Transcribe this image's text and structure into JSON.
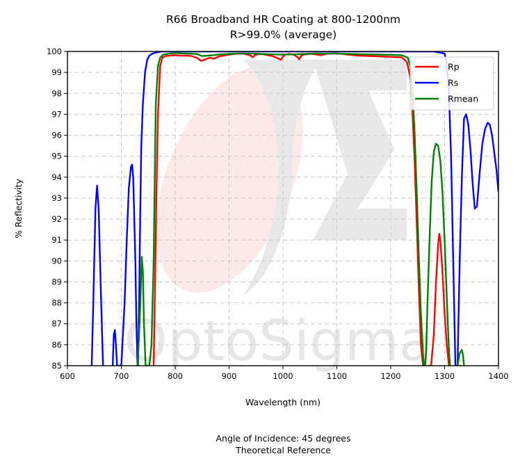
{
  "header": {
    "title": "R66 Broadband HR Coating at 800-1200nm",
    "subtitle": "R>99.0% (average)"
  },
  "footer": {
    "line1": "Angle of Incidence: 45 degrees",
    "line2": "Theoretical Reference"
  },
  "watermark": {
    "text": "OptoSigma",
    "color": "#cccccc"
  },
  "chart_data": {
    "type": "line",
    "title": "R66 Broadband HR Coating at 800-1200nm",
    "subtitle": "R>99.0% (average)",
    "xlabel": "Wavelength (nm)",
    "ylabel": "% Reflectivity",
    "xlim": [
      600,
      1400
    ],
    "ylim": [
      85,
      100
    ],
    "xticks": [
      600,
      700,
      800,
      900,
      1000,
      1100,
      1200,
      1300,
      1400
    ],
    "yticks": [
      85,
      86,
      87,
      88,
      89,
      90,
      91,
      92,
      93,
      94,
      95,
      96,
      97,
      98,
      99,
      100
    ],
    "grid": true,
    "legend_position": "top-right",
    "series": [
      {
        "name": "Rp",
        "color": "#ff0000",
        "x": [
          760,
          762,
          765,
          768,
          772,
          776,
          782,
          790,
          800,
          810,
          820,
          830,
          840,
          848,
          856,
          864,
          872,
          880,
          890,
          900,
          910,
          920,
          930,
          940,
          944,
          948,
          956,
          964,
          972,
          980,
          988,
          996,
          1000,
          1004,
          1010,
          1020,
          1028,
          1030,
          1034,
          1040,
          1050,
          1060,
          1070,
          1080,
          1090,
          1100,
          1110,
          1120,
          1140,
          1160,
          1180,
          1200,
          1220,
          1230,
          1236,
          1240,
          1244,
          1248,
          1252,
          1256,
          1260,
          1262,
          1264,
          1266,
          1270,
          1275,
          1280,
          1284,
          1288,
          1290,
          1292,
          1296,
          1300,
          1304,
          1308,
          1312,
          1316,
          1320,
          1324,
          1328,
          1330
        ],
        "y": [
          85,
          88,
          93,
          97,
          99.3,
          99.7,
          99.78,
          99.8,
          99.82,
          99.8,
          99.8,
          99.78,
          99.7,
          99.55,
          99.62,
          99.7,
          99.65,
          99.75,
          99.8,
          99.85,
          99.88,
          99.9,
          99.88,
          99.8,
          99.72,
          99.82,
          99.88,
          99.86,
          99.82,
          99.78,
          99.7,
          99.6,
          99.75,
          99.85,
          99.88,
          99.85,
          99.7,
          99.62,
          99.8,
          99.86,
          99.88,
          99.86,
          99.82,
          99.88,
          99.9,
          99.9,
          99.88,
          99.85,
          99.8,
          99.78,
          99.76,
          99.74,
          99.72,
          99.5,
          98.8,
          97.3,
          95,
          92,
          88.8,
          86,
          85,
          84.5,
          84.5,
          84.8,
          85,
          85,
          86.5,
          89,
          90.8,
          91.3,
          91,
          89.5,
          87.5,
          86,
          85,
          84.6,
          84.6,
          84.8,
          85,
          85,
          85
        ]
      },
      {
        "name": "Rs",
        "color": "#0000ff",
        "x": [
          640,
          645,
          648,
          652,
          655,
          658,
          662,
          666,
          668,
          680,
          684,
          686,
          688,
          690,
          692,
          700,
          706,
          710,
          714,
          718,
          720,
          722,
          726,
          728,
          730,
          731,
          733,
          735,
          737,
          740,
          744,
          748,
          752,
          758,
          765,
          775,
          790,
          1000,
          1200,
          1280,
          1300,
          1304,
          1308,
          1312,
          1316,
          1320,
          1324,
          1328,
          1332,
          1336,
          1340,
          1344,
          1348,
          1352,
          1356,
          1360,
          1365,
          1370,
          1375,
          1380,
          1384,
          1388,
          1392,
          1396,
          1400
        ],
        "y": [
          84,
          85,
          88,
          92.5,
          93.6,
          92.5,
          88.5,
          85,
          84,
          84,
          85,
          86.5,
          86.7,
          86,
          85,
          85,
          88,
          91,
          93.5,
          94.5,
          94.6,
          94,
          90,
          87,
          85,
          85,
          88,
          92,
          95.5,
          97.5,
          99,
          99.6,
          99.8,
          99.9,
          99.95,
          100,
          100,
          100,
          100,
          100,
          99.9,
          99.4,
          98,
          95,
          90,
          85,
          85,
          90,
          94,
          96.8,
          97,
          96.5,
          95.3,
          93.7,
          92.5,
          92.6,
          94.2,
          95.6,
          96.3,
          96.6,
          96.5,
          96,
          95.2,
          94.4,
          93.3
        ]
      },
      {
        "name": "Rmean",
        "color": "#008000",
        "x": [
          730,
          733,
          736,
          738,
          740,
          742,
          745,
          748,
          752,
          756,
          760,
          762,
          764,
          768,
          772,
          778,
          790,
          800,
          820,
          840,
          850,
          860,
          870,
          880,
          900,
          920,
          940,
          960,
          980,
          1000,
          1020,
          1040,
          1060,
          1080,
          1100,
          1120,
          1140,
          1160,
          1180,
          1200,
          1220,
          1232,
          1236,
          1240,
          1244,
          1248,
          1252,
          1256,
          1260,
          1262,
          1264,
          1266,
          1268,
          1272,
          1276,
          1280,
          1284,
          1288,
          1292,
          1296,
          1300,
          1304,
          1306,
          1308,
          1310,
          1312,
          1320,
          1324,
          1328,
          1332,
          1334,
          1336,
          1338,
          1340
        ],
        "y": [
          85,
          86.5,
          88.5,
          90.2,
          89.5,
          87,
          85,
          85,
          85,
          86,
          90,
          94,
          97.5,
          99.3,
          99.7,
          99.85,
          99.9,
          99.92,
          99.9,
          99.88,
          99.78,
          99.8,
          99.82,
          99.85,
          99.88,
          99.9,
          99.9,
          99.88,
          99.86,
          99.85,
          99.86,
          99.88,
          99.9,
          99.9,
          99.9,
          99.88,
          99.87,
          99.86,
          99.85,
          99.84,
          99.82,
          99.7,
          99.3,
          98.3,
          96.3,
          93.5,
          90.3,
          87.5,
          85.5,
          85,
          85,
          85.8,
          87.8,
          91,
          93.8,
          95.2,
          95.6,
          95.5,
          94.8,
          93.3,
          91,
          88.3,
          87,
          85.8,
          85,
          84.5,
          84.5,
          85,
          85.6,
          85.75,
          85.5,
          85,
          84.6,
          84.5
        ]
      }
    ]
  }
}
